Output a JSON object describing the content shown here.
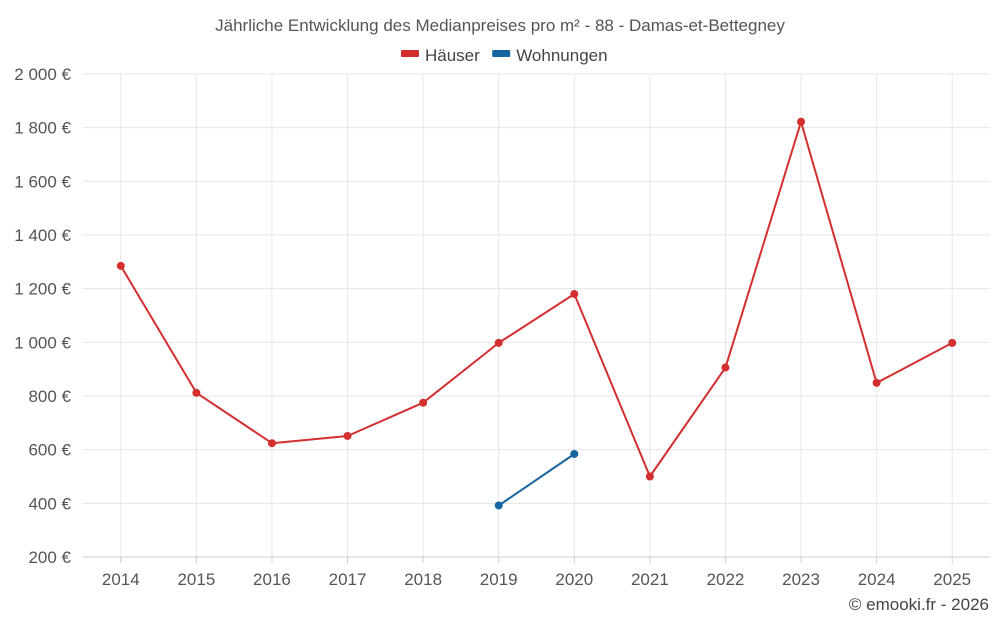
{
  "chart_data": {
    "type": "line",
    "title": "Jährliche Entwicklung des Medianpreises pro m² - 88 - Damas-et-Bettegney",
    "categories": [
      "2014",
      "2015",
      "2016",
      "2017",
      "2018",
      "2019",
      "2020",
      "2021",
      "2022",
      "2023",
      "2024",
      "2025"
    ],
    "series": [
      {
        "name": "Häuser",
        "color": "#d32f2f",
        "values": [
          1285,
          812,
          624,
          651,
          775,
          998,
          1180,
          500,
          906,
          1822,
          849,
          998
        ]
      },
      {
        "name": "Wohnungen",
        "color": "#1565a0",
        "values": [
          null,
          null,
          null,
          null,
          null,
          392,
          584,
          null,
          null,
          null,
          null,
          null
        ]
      }
    ],
    "ylim": [
      200,
      2000
    ],
    "yticks": [
      200,
      400,
      600,
      800,
      1000,
      1200,
      1400,
      1600,
      1800,
      2000
    ],
    "ytick_labels": [
      "200 €",
      "400 €",
      "600 €",
      "800 €",
      "1 000 €",
      "1 200 €",
      "1 400 €",
      "1 600 €",
      "1 800 €",
      "2 000 €"
    ],
    "xlabel": "",
    "ylabel": "",
    "legend_position": "top-center",
    "grid": true
  },
  "credit": "© emooki.fr - 2026"
}
